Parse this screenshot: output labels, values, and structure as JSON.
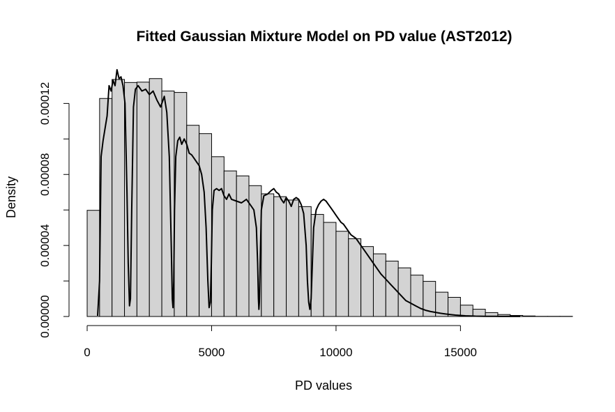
{
  "chart_data": {
    "type": "histogram",
    "title": "Fitted Gaussian Mixture Model on PD value (AST2012)",
    "xlabel": "PD values",
    "ylabel": "Density",
    "xlim": [
      0,
      19500
    ],
    "ylim": [
      0,
      0.000139
    ],
    "x_ticks": [
      0,
      5000,
      10000,
      15000
    ],
    "x_tick_labels": [
      "0",
      "5000",
      "10000",
      "15000"
    ],
    "y_ticks": [
      0,
      2e-05,
      4e-05,
      6e-05,
      8e-05,
      0.0001,
      0.00012
    ],
    "y_tick_labels": [
      "0.00000",
      "0.00004",
      "0.00008",
      "0.00012"
    ],
    "y_labeled_ticks": [
      0,
      4e-05,
      8e-05,
      0.00012
    ],
    "bin_width": 500,
    "bins_start": 0,
    "bar_values": [
      5.98e-05,
      0.0001228,
      0.0001335,
      0.0001318,
      0.000132,
      0.000134,
      0.000127,
      0.0001262,
      0.0001077,
      0.000103,
      9e-05,
      8.2e-05,
      7.92e-05,
      7.37e-05,
      6.91e-05,
      6.75e-05,
      6.56e-05,
      6.19e-05,
      5.75e-05,
      5.3e-05,
      4.8e-05,
      4.38e-05,
      3.94e-05,
      3.53e-05,
      3.12e-05,
      2.74e-05,
      2.33e-05,
      1.98e-05,
      1.37e-05,
      1.08e-05,
      6.4e-06,
      4.1e-06,
      2.2e-06,
      1.1e-06,
      6e-07,
      3e-07,
      1e-07,
      1e-07,
      1e-07
    ],
    "fitted_curve": {
      "x": [
        420,
        500,
        560,
        640,
        720,
        800,
        880,
        960,
        1040,
        1120,
        1200,
        1280,
        1360,
        1440,
        1520,
        1600,
        1650,
        1700,
        1740,
        1790,
        1860,
        1940,
        2050,
        2200,
        2350,
        2500,
        2650,
        2800,
        2950,
        3100,
        3200,
        3300,
        3380,
        3420,
        3450,
        3480,
        3510,
        3560,
        3640,
        3720,
        3800,
        3900,
        4000,
        4100,
        4200,
        4300,
        4400,
        4500,
        4600,
        4700,
        4780,
        4850,
        4900,
        4950,
        4990,
        5030,
        5100,
        5200,
        5300,
        5400,
        5500,
        5600,
        5700,
        5800,
        6000,
        6200,
        6400,
        6600,
        6700,
        6800,
        6850,
        6880,
        6900,
        6920,
        6950,
        7000,
        7100,
        7250,
        7400,
        7500,
        7600,
        7700,
        7800,
        7900,
        8000,
        8100,
        8200,
        8300,
        8400,
        8500,
        8600,
        8700,
        8800,
        8850,
        8900,
        8950,
        9000,
        9050,
        9100,
        9200,
        9300,
        9400,
        9500,
        9600,
        9700,
        9800,
        9900,
        10000,
        10100,
        10200,
        10300,
        10400,
        10500,
        10600,
        10800,
        11000,
        11200,
        11400,
        11600,
        11800,
        12000,
        12200,
        12400,
        12600,
        12800,
        13000,
        13200,
        13400,
        13600,
        13800,
        14000,
        14200,
        14400,
        14600,
        14800,
        15000,
        15200,
        15400,
        15600,
        15800,
        16000,
        16200,
        16400,
        16600,
        16800,
        17000,
        17200,
        17400
      ],
      "y": [
        4e-07,
        2e-05,
        9e-05,
        9.9e-05,
        0.000106,
        0.000113,
        0.00013,
        0.000127,
        0.000133,
        0.00013,
        0.000139,
        0.000134,
        0.000135,
        0.00013,
        0.00012,
        7e-05,
        3e-05,
        6e-06,
        1e-05,
        6e-05,
        0.000118,
        0.000128,
        0.00013,
        0.000127,
        0.000128,
        0.000125,
        0.000127,
        0.000122,
        0.000118,
        0.000124,
        0.000115,
        9e-05,
        4e-05,
        1e-05,
        5e-06,
        2e-05,
        6e-05,
        9e-05,
        9.9e-05,
        0.000101,
        9.7e-05,
        0.0001,
        9.7e-05,
        9.2e-05,
        9.1e-05,
        8.9e-05,
        8.7e-05,
        8.5e-05,
        8e-05,
        7e-05,
        5e-05,
        2e-05,
        5e-06,
        8e-06,
        3e-05,
        6e-05,
        7.1e-05,
        7.2e-05,
        7.1e-05,
        7.2e-05,
        6.8e-05,
        6.6e-05,
        6.9e-05,
        6.6e-05,
        6.5e-05,
        6.4e-05,
        6.6e-05,
        6.2e-05,
        6e-05,
        5e-05,
        3e-05,
        1e-05,
        4e-06,
        8e-06,
        3e-05,
        6e-05,
        6.8e-05,
        6.9e-05,
        7.1e-05,
        7.2e-05,
        7e-05,
        6.9e-05,
        6.6e-05,
        6.4e-05,
        6.7e-05,
        6.5e-05,
        6.2e-05,
        6.6e-05,
        6.7e-05,
        6.6e-05,
        6.3e-05,
        5.8e-05,
        4e-05,
        2e-05,
        8e-06,
        4e-06,
        1e-05,
        3e-05,
        5e-05,
        6e-05,
        6.3e-05,
        6.5e-05,
        6.6e-05,
        6.5e-05,
        6.3e-05,
        6.1e-05,
        5.9e-05,
        5.7e-05,
        5.5e-05,
        5.3e-05,
        5.2e-05,
        5e-05,
        4.8e-05,
        4.6e-05,
        4.4e-05,
        4e-05,
        3.6e-05,
        3.2e-05,
        2.8e-05,
        2.4e-05,
        2.1e-05,
        1.8e-05,
        1.5e-05,
        1.2e-05,
        9e-06,
        7.5e-06,
        6e-06,
        4.5e-06,
        3.5e-06,
        2.8e-06,
        2.3e-06,
        1.8e-06,
        1.4e-06,
        1.1e-06,
        8e-07,
        6e-07,
        4e-07,
        3e-07,
        2e-07,
        1.5e-07,
        1e-07,
        1e-07,
        1e-07,
        5e-08,
        5e-08,
        1e-07,
        5e-08,
        2e-08
      ]
    },
    "grid": false,
    "legend": "none",
    "colors": {
      "bar_fill": "#d3d3d3",
      "bar_stroke": "#000000",
      "curve": "#000000"
    }
  }
}
